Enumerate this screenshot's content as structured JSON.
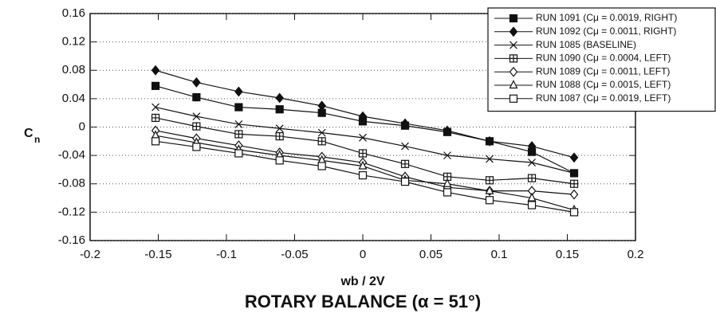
{
  "chart_data": {
    "type": "line",
    "title": "ROTARY BALANCE (α = 51°)",
    "xlabel": "wb / 2V",
    "ylabel": {
      "main": "C",
      "subscript": "n"
    },
    "x": [
      -0.152,
      -0.122,
      -0.091,
      -0.061,
      -0.03,
      0,
      0.031,
      0.062,
      0.093,
      0.124,
      0.155
    ],
    "series": [
      {
        "name": "RUN 1091 (Cμ = 0.0019, RIGHT)",
        "color": "#111",
        "marker": "filled-square",
        "values": [
          0.058,
          0.042,
          0.028,
          0.025,
          0.02,
          0.008,
          0.002,
          -0.007,
          -0.02,
          -0.035,
          -0.065
        ]
      },
      {
        "name": "RUN 1092 (Cμ = 0.0011, RIGHT)",
        "color": "#111",
        "marker": "filled-diamond",
        "values": [
          0.08,
          0.063,
          0.05,
          0.041,
          0.03,
          0.015,
          0.005,
          -0.005,
          -0.02,
          -0.027,
          -0.043
        ]
      },
      {
        "name": "RUN 1085 (BASELINE)",
        "color": "#111",
        "marker": "x",
        "values": [
          0.028,
          0.015,
          0.004,
          -0.002,
          -0.008,
          -0.015,
          -0.027,
          -0.04,
          -0.045,
          -0.05,
          -0.065
        ]
      },
      {
        "name": "RUN 1090 (Cμ = 0.0004, LEFT)",
        "color": "#111",
        "marker": "square-plus",
        "values": [
          0.013,
          0.001,
          -0.01,
          -0.013,
          -0.02,
          -0.037,
          -0.052,
          -0.07,
          -0.075,
          -0.072,
          -0.08
        ]
      },
      {
        "name": "RUN 1089 (Cμ = 0.0011, LEFT)",
        "color": "#111",
        "marker": "diamond",
        "values": [
          -0.005,
          -0.016,
          -0.026,
          -0.036,
          -0.042,
          -0.05,
          -0.07,
          -0.085,
          -0.09,
          -0.09,
          -0.095
        ]
      },
      {
        "name": "RUN 1088 (Cμ = 0.0015, LEFT)",
        "color": "#111",
        "marker": "triangle",
        "values": [
          -0.012,
          -0.022,
          -0.032,
          -0.04,
          -0.047,
          -0.055,
          -0.075,
          -0.08,
          -0.09,
          -0.1,
          -0.117
        ]
      },
      {
        "name": "RUN 1087 (Cμ = 0.0019, LEFT)",
        "color": "#111",
        "marker": "square",
        "values": [
          -0.02,
          -0.028,
          -0.037,
          -0.047,
          -0.055,
          -0.068,
          -0.077,
          -0.092,
          -0.103,
          -0.11,
          -0.12
        ]
      }
    ],
    "xlim": [
      -0.2,
      0.2
    ],
    "xticks": [
      -0.2,
      -0.15,
      -0.1,
      -0.05,
      0,
      0.05,
      0.1,
      0.15,
      0.2
    ],
    "ylim": [
      -0.16,
      0.16
    ],
    "yticks": [
      -0.16,
      -0.12,
      -0.08,
      -0.04,
      0,
      0.04,
      0.08,
      0.12,
      0.16
    ],
    "grid": true,
    "legend": "upper right"
  }
}
